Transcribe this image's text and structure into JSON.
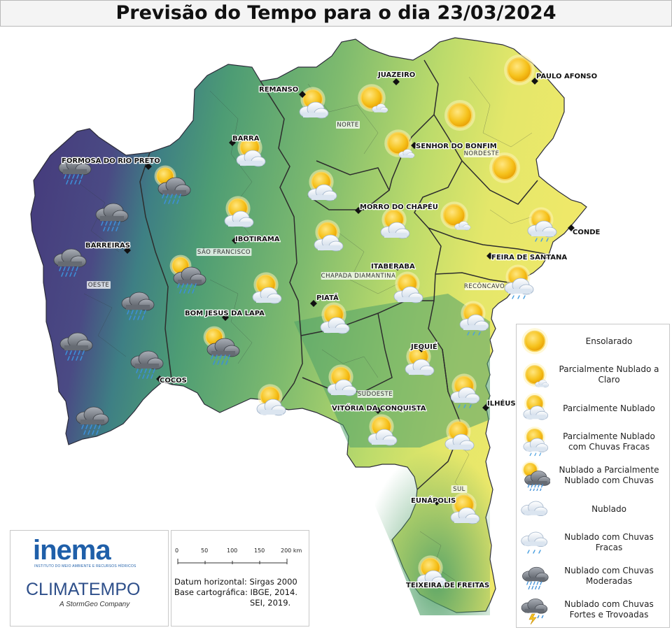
{
  "title": "Previsão do Tempo para o dia 23/03/2024",
  "cities": [
    {
      "name": "JUAZEIRO"
    },
    {
      "name": "PAULO AFONSO"
    },
    {
      "name": "REMANSO"
    },
    {
      "name": "SENHOR DO BONFIM"
    },
    {
      "name": "BARRA"
    },
    {
      "name": "FORMOSA DO RIO PRETO"
    },
    {
      "name": "MORRO DO CHAPÉU"
    },
    {
      "name": "CONDE"
    },
    {
      "name": "IBOTIRAMA"
    },
    {
      "name": "BARREIRAS"
    },
    {
      "name": "FEIRA DE SANTANA"
    },
    {
      "name": "ITABERABA"
    },
    {
      "name": "PIATÃ"
    },
    {
      "name": "BOM JESUS DA LAPA"
    },
    {
      "name": "JEQUIÉ"
    },
    {
      "name": "COCOS"
    },
    {
      "name": "VITÓRIA DA CONQUISTA"
    },
    {
      "name": "ILHÉUS"
    },
    {
      "name": "EUNÁPOLIS"
    },
    {
      "name": "TEIXEIRA DE FREITAS"
    }
  ],
  "regions": [
    {
      "name": "NORTE"
    },
    {
      "name": "NORDESTE"
    },
    {
      "name": "SÃO FRANCISCO"
    },
    {
      "name": "OESTE"
    },
    {
      "name": "CHAPADA DIAMANTINA"
    },
    {
      "name": "RECÔNCAVO"
    },
    {
      "name": "SUDOESTE"
    },
    {
      "name": "SUL"
    }
  ],
  "forecast_icons": [
    {
      "type": "partly-cloudy"
    },
    {
      "type": "partly-cloudy-to-clear"
    },
    {
      "type": "sunny"
    },
    {
      "type": "sunny"
    },
    {
      "type": "partly-cloudy-to-clear"
    },
    {
      "type": "sunny"
    },
    {
      "type": "partly-cloudy"
    },
    {
      "type": "cloudy-moderate-rain"
    },
    {
      "type": "cloudy-to-partly-cloudy-rain"
    },
    {
      "type": "partly-cloudy"
    },
    {
      "type": "partly-cloudy-to-clear"
    },
    {
      "type": "cloudy-moderate-rain"
    },
    {
      "type": "partly-cloudy"
    },
    {
      "type": "partly-cloudy"
    },
    {
      "type": "partly-cloudy"
    },
    {
      "type": "partly-cloudy-light-rain"
    },
    {
      "type": "cloudy-moderate-rain"
    },
    {
      "type": "cloudy-to-partly-cloudy-rain"
    },
    {
      "type": "partly-cloudy"
    },
    {
      "type": "partly-cloudy-light-rain"
    },
    {
      "type": "cloudy-moderate-rain"
    },
    {
      "type": "partly-cloudy"
    },
    {
      "type": "partly-cloudy-light-rain"
    },
    {
      "type": "cloudy-moderate-rain"
    },
    {
      "type": "cloudy-to-partly-cloudy-rain"
    },
    {
      "type": "partly-cloudy"
    },
    {
      "type": "cloudy-moderate-rain"
    },
    {
      "type": "partly-cloudy"
    },
    {
      "type": "partly-cloudy"
    },
    {
      "type": "partly-cloudy-light-rain"
    },
    {
      "type": "partly-cloudy"
    },
    {
      "type": "cloudy-moderate-rain"
    },
    {
      "type": "partly-cloudy"
    },
    {
      "type": "partly-cloudy"
    },
    {
      "type": "partly-cloudy"
    },
    {
      "type": "partly-cloudy"
    },
    {
      "type": "partly-cloudy"
    }
  ],
  "legend": [
    {
      "icon": "sun-icon",
      "label": "Ensolarado"
    },
    {
      "icon": "sun-cloud-icon",
      "label": "Parcialmente Nublado a Claro"
    },
    {
      "icon": "partly-cloudy-icon",
      "label": "Parcialmente Nublado"
    },
    {
      "icon": "partly-cloudy-light-rain-icon",
      "label": "Parcialmente Nublado com Chuvas Fracas"
    },
    {
      "icon": "cloudy-partly-rain-icon",
      "label": "Nublado a Parcialmente Nublado com Chuvas"
    },
    {
      "icon": "cloud-icon",
      "label": "Nublado"
    },
    {
      "icon": "cloud-light-rain-icon",
      "label": "Nublado com Chuvas Fracas"
    },
    {
      "icon": "cloud-moderate-rain-icon",
      "label": "Nublado com Chuvas Moderadas"
    },
    {
      "icon": "storm-icon",
      "label": "Nublado com Chuvas Fortes e Trovoadas"
    }
  ],
  "logos": {
    "inema": "inema",
    "inema_sub": "INSTITUTO DO MEIO AMBIENTE E RECURSOS HÍDRICOS",
    "climatempo": "CLIMATEMPO",
    "climatempo_sub": "A StormGeo Company"
  },
  "scale": {
    "ticks": [
      "0",
      "50",
      "100",
      "150",
      "200 km"
    ]
  },
  "meta": {
    "datum": "Datum horizontal: Sirgas 2000",
    "base": "Base cartográfica: IBGE, 2014.",
    "sei": "SEI, 2019."
  },
  "colors": {
    "sunny_zone": "#e9e866",
    "north_zone": "#9fcf72",
    "east_zone": "#5aa46a",
    "center_zone": "#3b8a78",
    "west_zone": "#463d78",
    "sun": "#f5c324",
    "title_bg": "#f4f4f4"
  }
}
